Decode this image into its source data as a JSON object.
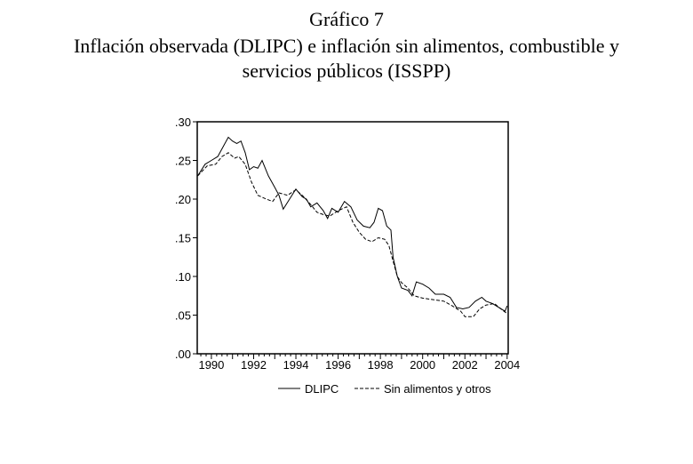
{
  "header": {
    "figure_number": "Gráfico 7",
    "title_line1": "Inflación observada (DLIPC) e inflación sin alimentos, combustible y",
    "title_line2": "servicios públicos (ISSPP)"
  },
  "chart_data": {
    "type": "line",
    "title": "Inflación observada (DLIPC) e inflación sin alimentos, combustible y servicios públicos (ISSPP)",
    "xlabel": "",
    "ylabel": "",
    "xlim": [
      1989.33,
      2004.05
    ],
    "ylim": [
      0,
      0.3
    ],
    "yticks": [
      ".00",
      ".05",
      ".10",
      ".15",
      ".20",
      ".25",
      ".30"
    ],
    "ytick_values": [
      0,
      0.05,
      0.1,
      0.15,
      0.2,
      0.25,
      0.3
    ],
    "xticks": [
      "1990",
      "1992",
      "1994",
      "1996",
      "1998",
      "2000",
      "2002",
      "2004"
    ],
    "xtick_values": [
      1990,
      1992,
      1994,
      1996,
      1998,
      2000,
      2002,
      2004
    ],
    "legend_position": "bottom",
    "grid": false,
    "series": [
      {
        "name": "DLIPC",
        "style": "solid",
        "x": [
          1989.35,
          1989.7,
          1990.0,
          1990.3,
          1990.6,
          1990.8,
          1991.0,
          1991.2,
          1991.4,
          1991.6,
          1991.8,
          1992.0,
          1992.2,
          1992.4,
          1992.7,
          1993.0,
          1993.2,
          1993.4,
          1993.7,
          1994.0,
          1994.3,
          1994.5,
          1994.7,
          1995.0,
          1995.3,
          1995.5,
          1995.7,
          1996.0,
          1996.3,
          1996.6,
          1996.9,
          1997.2,
          1997.5,
          1997.7,
          1997.9,
          1998.1,
          1998.3,
          1998.5,
          1998.6,
          1998.8,
          1999.0,
          1999.3,
          1999.5,
          1999.7,
          2000.0,
          2000.3,
          2000.6,
          2001.0,
          2001.3,
          2001.6,
          2001.9,
          2002.2,
          2002.5,
          2002.8,
          2003.0,
          2003.3,
          2003.6,
          2003.9,
          2004.0
        ],
        "y": [
          0.23,
          0.245,
          0.25,
          0.255,
          0.27,
          0.28,
          0.275,
          0.272,
          0.275,
          0.26,
          0.238,
          0.242,
          0.24,
          0.25,
          0.23,
          0.215,
          0.205,
          0.187,
          0.2,
          0.213,
          0.203,
          0.2,
          0.19,
          0.195,
          0.185,
          0.175,
          0.188,
          0.183,
          0.197,
          0.19,
          0.173,
          0.165,
          0.163,
          0.17,
          0.188,
          0.185,
          0.165,
          0.16,
          0.125,
          0.1,
          0.085,
          0.082,
          0.075,
          0.093,
          0.09,
          0.085,
          0.077,
          0.077,
          0.073,
          0.06,
          0.058,
          0.06,
          0.068,
          0.073,
          0.068,
          0.065,
          0.06,
          0.055,
          0.062
        ]
      },
      {
        "name": "Sin alimentos y otros",
        "style": "dashed",
        "x": [
          1989.35,
          1989.8,
          1990.2,
          1990.5,
          1990.8,
          1991.1,
          1991.3,
          1991.6,
          1991.9,
          1992.2,
          1992.6,
          1992.9,
          1993.2,
          1993.6,
          1994.0,
          1994.3,
          1994.7,
          1995.0,
          1995.3,
          1995.6,
          1996.0,
          1996.4,
          1996.7,
          1997.0,
          1997.3,
          1997.6,
          1997.9,
          1998.2,
          1998.4,
          1998.6,
          1998.8,
          1999.0,
          1999.3,
          1999.6,
          2000.0,
          2000.5,
          2001.0,
          2001.4,
          2001.8,
          2002.0,
          2002.4,
          2002.7,
          2003.0,
          2003.4,
          2003.7,
          2004.0
        ],
        "y": [
          0.23,
          0.243,
          0.245,
          0.255,
          0.26,
          0.253,
          0.255,
          0.245,
          0.222,
          0.205,
          0.2,
          0.197,
          0.208,
          0.205,
          0.212,
          0.205,
          0.193,
          0.183,
          0.18,
          0.178,
          0.185,
          0.19,
          0.17,
          0.157,
          0.148,
          0.145,
          0.15,
          0.148,
          0.14,
          0.12,
          0.1,
          0.092,
          0.085,
          0.075,
          0.072,
          0.07,
          0.068,
          0.062,
          0.055,
          0.048,
          0.048,
          0.058,
          0.063,
          0.065,
          0.058,
          0.052
        ]
      }
    ]
  }
}
